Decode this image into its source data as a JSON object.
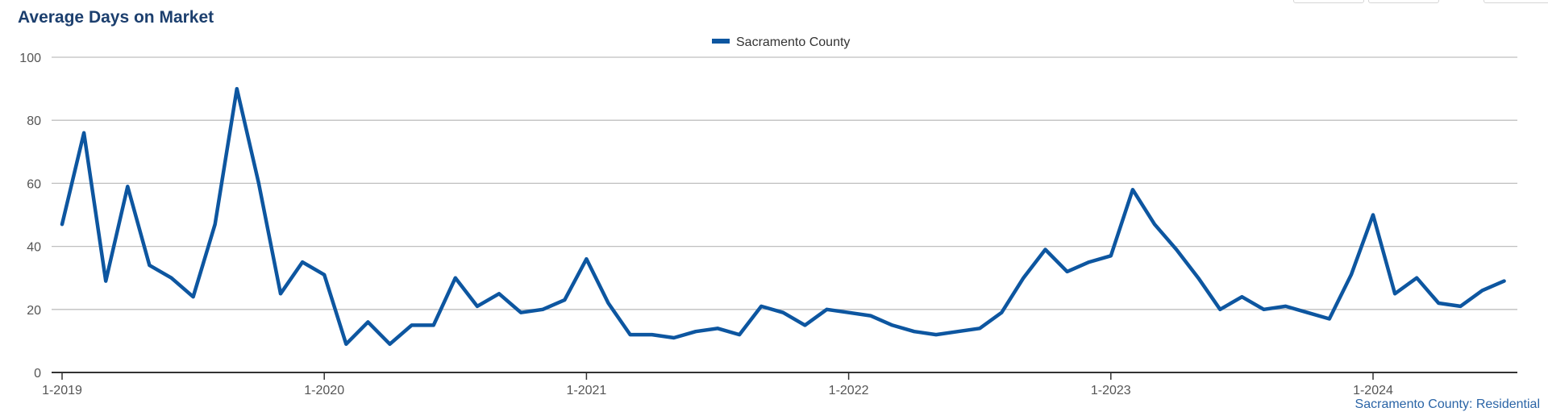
{
  "title": "Average Days on Market",
  "source_label": "Sacramento County: Residential",
  "colors": {
    "series": "#0d56a0",
    "title": "#1c3f6e",
    "grid": "#bfbfbf"
  },
  "chart_data": {
    "type": "line",
    "title": "Average Days on Market",
    "xlabel": "",
    "ylabel": "",
    "ylim": [
      0,
      100
    ],
    "yticks": [
      0,
      20,
      40,
      60,
      80,
      100
    ],
    "xticks": [
      {
        "label": "1-2019",
        "index": 0
      },
      {
        "label": "1-2020",
        "index": 12
      },
      {
        "label": "1-2021",
        "index": 24
      },
      {
        "label": "1-2022",
        "index": 36
      },
      {
        "label": "1-2023",
        "index": 48
      },
      {
        "label": "1-2024",
        "index": 60
      }
    ],
    "grid": true,
    "legend_position": "top-center",
    "x": [
      "1-2019",
      "2-2019",
      "3-2019",
      "4-2019",
      "5-2019",
      "6-2019",
      "7-2019",
      "8-2019",
      "9-2019",
      "10-2019",
      "11-2019",
      "12-2019",
      "1-2020",
      "2-2020",
      "3-2020",
      "4-2020",
      "5-2020",
      "6-2020",
      "7-2020",
      "8-2020",
      "9-2020",
      "10-2020",
      "11-2020",
      "12-2020",
      "1-2021",
      "2-2021",
      "3-2021",
      "4-2021",
      "5-2021",
      "6-2021",
      "7-2021",
      "8-2021",
      "9-2021",
      "10-2021",
      "11-2021",
      "12-2021",
      "1-2022",
      "2-2022",
      "3-2022",
      "4-2022",
      "5-2022",
      "6-2022",
      "7-2022",
      "8-2022",
      "9-2022",
      "10-2022",
      "11-2022",
      "12-2022",
      "1-2023",
      "2-2023",
      "3-2023",
      "4-2023",
      "5-2023",
      "6-2023",
      "7-2023",
      "8-2023",
      "9-2023",
      "10-2023",
      "11-2023",
      "12-2023",
      "1-2024",
      "2-2024",
      "3-2024",
      "4-2024",
      "5-2024",
      "6-2024",
      "7-2024"
    ],
    "series": [
      {
        "name": "Sacramento County",
        "values": [
          47,
          76,
          29,
          59,
          34,
          30,
          24,
          47,
          90,
          60,
          25,
          35,
          31,
          9,
          16,
          9,
          15,
          15,
          30,
          21,
          25,
          19,
          20,
          23,
          36,
          22,
          12,
          12,
          11,
          13,
          14,
          12,
          21,
          19,
          15,
          20,
          19,
          18,
          15,
          13,
          12,
          13,
          14,
          19,
          30,
          39,
          32,
          35,
          37,
          58,
          47,
          39,
          30,
          20,
          24,
          20,
          21,
          19,
          17,
          31,
          50,
          25,
          30,
          22,
          21,
          26,
          29
        ]
      }
    ]
  }
}
